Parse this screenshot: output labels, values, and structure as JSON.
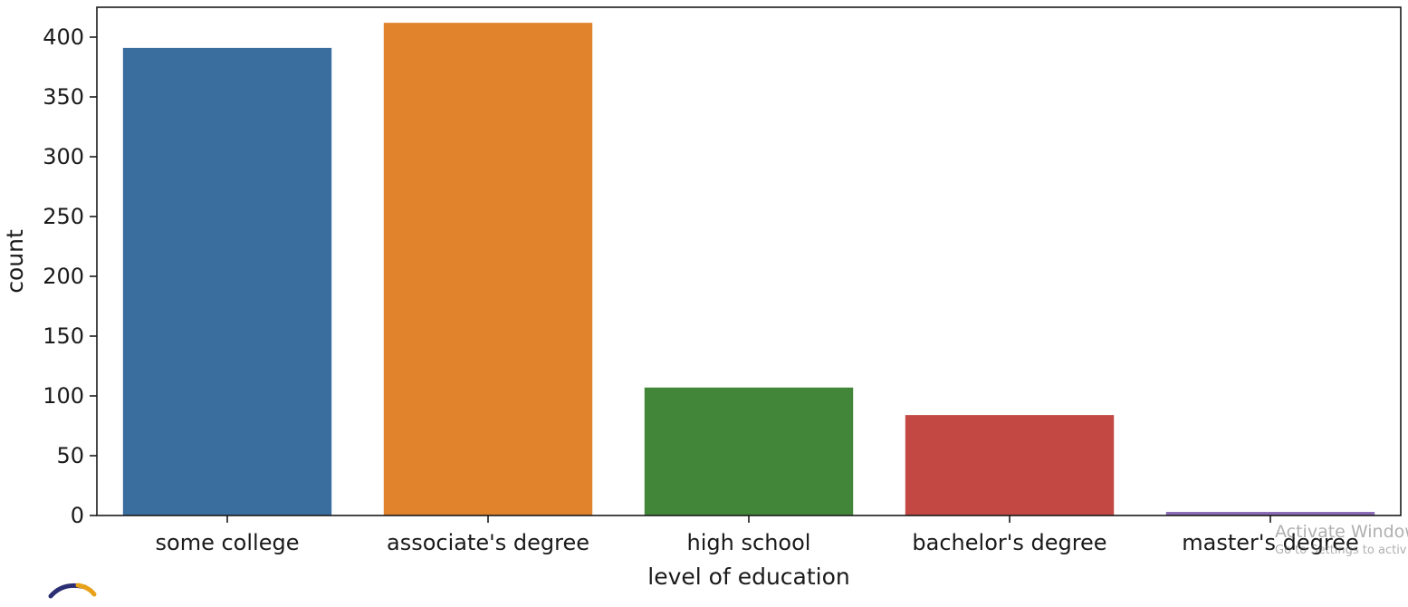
{
  "chart_data": {
    "type": "bar",
    "title": "",
    "xlabel": "level of education",
    "ylabel": "count",
    "categories": [
      "some college",
      "associate's degree",
      "high school",
      "bachelor's degree",
      "master's degree"
    ],
    "values": [
      391,
      412,
      107,
      84,
      3
    ],
    "colors": [
      "#3a6e9f",
      "#e0832c",
      "#428739",
      "#c34843",
      "#8b6ab5"
    ],
    "ylim": [
      0,
      425
    ],
    "yticks": [
      0,
      50,
      100,
      150,
      200,
      250,
      300,
      350,
      400
    ],
    "ytick_labels": [
      "0",
      "50",
      "100",
      "150",
      "200",
      "250",
      "300",
      "350",
      "400"
    ],
    "grid": false,
    "legend": "none"
  },
  "overlay": {
    "watermark_title": "Activate Window",
    "watermark_subtitle": "Go to Settings to activ"
  }
}
